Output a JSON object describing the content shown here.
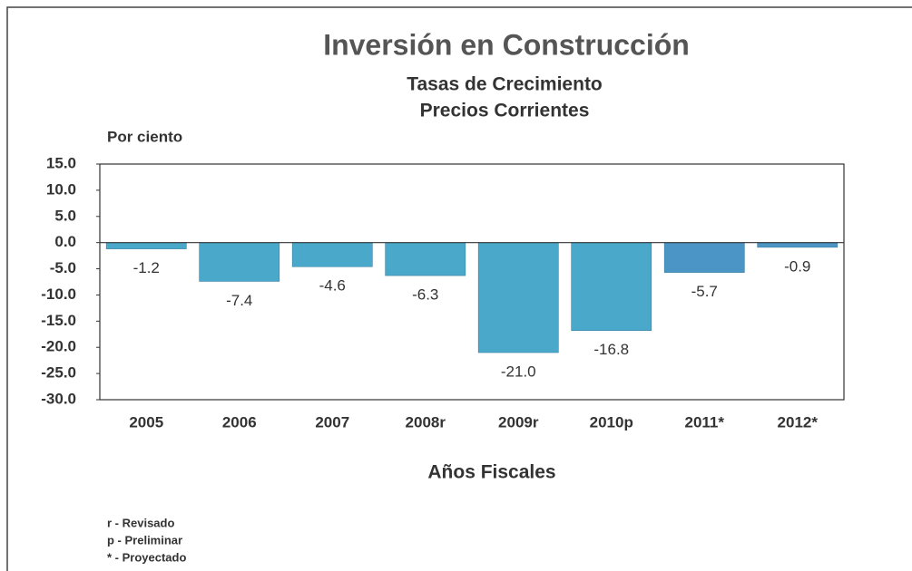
{
  "chart_data": {
    "type": "bar",
    "title": "Inversión en Construcción",
    "subtitle": [
      "Tasas de Crecimiento",
      "Precios Corrientes"
    ],
    "y_label": "Por ciento",
    "x_label": "Años Fiscales",
    "categories": [
      "2005",
      "2006",
      "2007",
      "2008r",
      "2009r",
      "2010p",
      "2011*",
      "2012*"
    ],
    "values": [
      -1.2,
      -7.4,
      -4.6,
      -6.3,
      -21.0,
      -16.8,
      -5.7,
      -0.9
    ],
    "value_labels": [
      "-1.2",
      "-7.4",
      "-4.6",
      "-6.3",
      "-21.0",
      "-16.8",
      "-5.7",
      "-0.9"
    ],
    "colors": [
      "#4aa9cb",
      "#4aa9cb",
      "#4aa9cb",
      "#4aa9cb",
      "#4aa9cb",
      "#4aa9cb",
      "#4a95c6",
      "#4a95c6"
    ],
    "ylim": [
      -30,
      15
    ],
    "yticks": [
      {
        "value": 15,
        "label": "15.0"
      },
      {
        "value": 10,
        "label": "10.0"
      },
      {
        "value": 5,
        "label": "5.0"
      },
      {
        "value": 0,
        "label": "0.0"
      },
      {
        "value": -5,
        "label": "-5.0"
      },
      {
        "value": -10,
        "label": "-10.0"
      },
      {
        "value": -15,
        "label": "-15.0"
      },
      {
        "value": -20,
        "label": "-20.0"
      },
      {
        "value": -25,
        "label": "-25.0"
      },
      {
        "value": -30,
        "label": "-30.0"
      }
    ],
    "notes": [
      "r - Revisado",
      "p - Preliminar",
      "* - Proyectado"
    ]
  }
}
